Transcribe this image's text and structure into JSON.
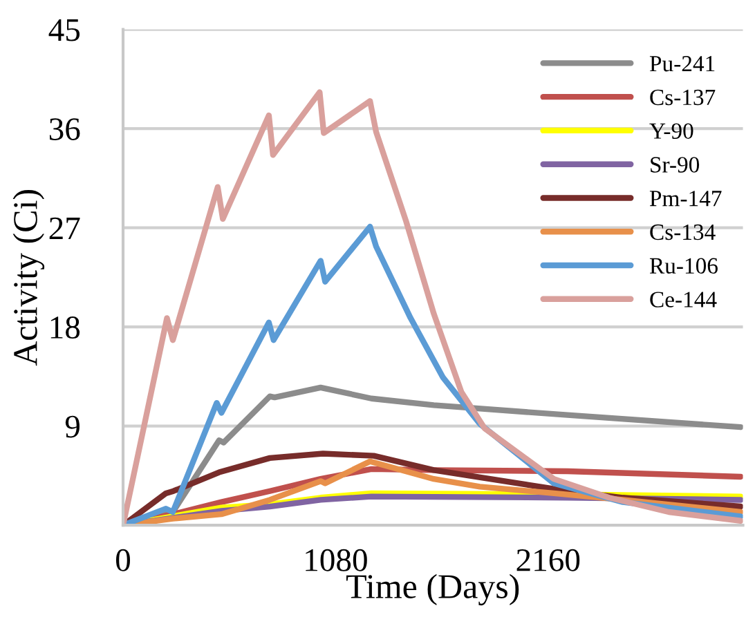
{
  "chart_data": {
    "type": "line",
    "xlabel": "Time (Days)",
    "ylabel": "Activity (Ci)",
    "xlim": [
      0,
      3150
    ],
    "xticks": [
      0,
      1080,
      2160
    ],
    "ylim": [
      0,
      45
    ],
    "yticks": [
      {
        "value": 0,
        "label": null
      },
      9,
      18,
      27,
      36,
      45
    ],
    "grid": "y",
    "legend": "top right",
    "marker": "none",
    "line_style": "solid",
    "series": [
      {
        "name": "Pu-241",
        "color": "#8c8c8c",
        "x": [
          0,
          253,
          488,
          511,
          746,
          770,
          1004,
          1262,
          1579,
          2259,
          3139
        ],
        "values": [
          0,
          1.2,
          7.7,
          7.5,
          11.7,
          11.6,
          12.5,
          11.5,
          10.9,
          10.0,
          8.9
        ]
      },
      {
        "name": "Cs-137",
        "color": "#c0504d",
        "x": [
          0,
          253,
          500,
          746,
          1004,
          1262,
          1579,
          2259,
          3139
        ],
        "values": [
          0,
          1.0,
          2.1,
          3.1,
          4.2,
          5.1,
          5.0,
          4.9,
          4.4
        ]
      },
      {
        "name": "Y-90",
        "color": "#ffff00",
        "x": [
          0,
          500,
          746,
          1004,
          1262,
          2259,
          3139
        ],
        "values": [
          0,
          1.6,
          1.9,
          2.5,
          2.9,
          2.8,
          2.6
        ]
      },
      {
        "name": "Sr-90",
        "color": "#8064a2",
        "x": [
          0,
          500,
          746,
          1004,
          1262,
          2259,
          3139
        ],
        "values": [
          0,
          1.3,
          1.7,
          2.3,
          2.6,
          2.5,
          2.3
        ]
      },
      {
        "name": "Pm-147",
        "color": "#772c2a",
        "x": [
          0,
          218,
          256,
          488,
          746,
          1016,
          1274,
          1579,
          2259,
          2540,
          3139
        ],
        "values": [
          0,
          2.9,
          3.1,
          4.8,
          6.1,
          6.5,
          6.3,
          5.0,
          3.1,
          2.5,
          1.7
        ]
      },
      {
        "name": "Cs-134",
        "color": "#e8904a",
        "x": [
          0,
          253,
          500,
          746,
          1004,
          1027,
          1255,
          1579,
          1813,
          2189,
          2540,
          3139
        ],
        "values": [
          0,
          0.6,
          1.0,
          2.3,
          4.0,
          3.8,
          5.8,
          4.2,
          3.5,
          2.9,
          2.3,
          1.2
        ]
      },
      {
        "name": "Ru-106",
        "color": "#5b9bd5",
        "x": [
          0,
          218,
          253,
          476,
          500,
          741,
          765,
          1004,
          1027,
          1255,
          1286,
          1461,
          1626,
          1813,
          2189,
          2540,
          3139
        ],
        "values": [
          0,
          1.5,
          1.2,
          11.1,
          10.2,
          18.4,
          16.8,
          24.0,
          22.1,
          27.1,
          25.3,
          18.8,
          13.4,
          9.2,
          3.8,
          2.1,
          0.8
        ]
      },
      {
        "name": "Ce-144",
        "color": "#d9a09c",
        "x": [
          0,
          223,
          253,
          481,
          507,
          741,
          762,
          999,
          1020,
          1255,
          1286,
          1438,
          1579,
          1719,
          1837,
          2189,
          2470,
          2773,
          3139
        ],
        "values": [
          0,
          18.8,
          16.8,
          30.7,
          27.8,
          37.2,
          33.6,
          39.3,
          35.6,
          38.5,
          35.7,
          27.6,
          19.2,
          12.1,
          8.8,
          4.2,
          2.5,
          1.2,
          0.4
        ]
      }
    ]
  }
}
